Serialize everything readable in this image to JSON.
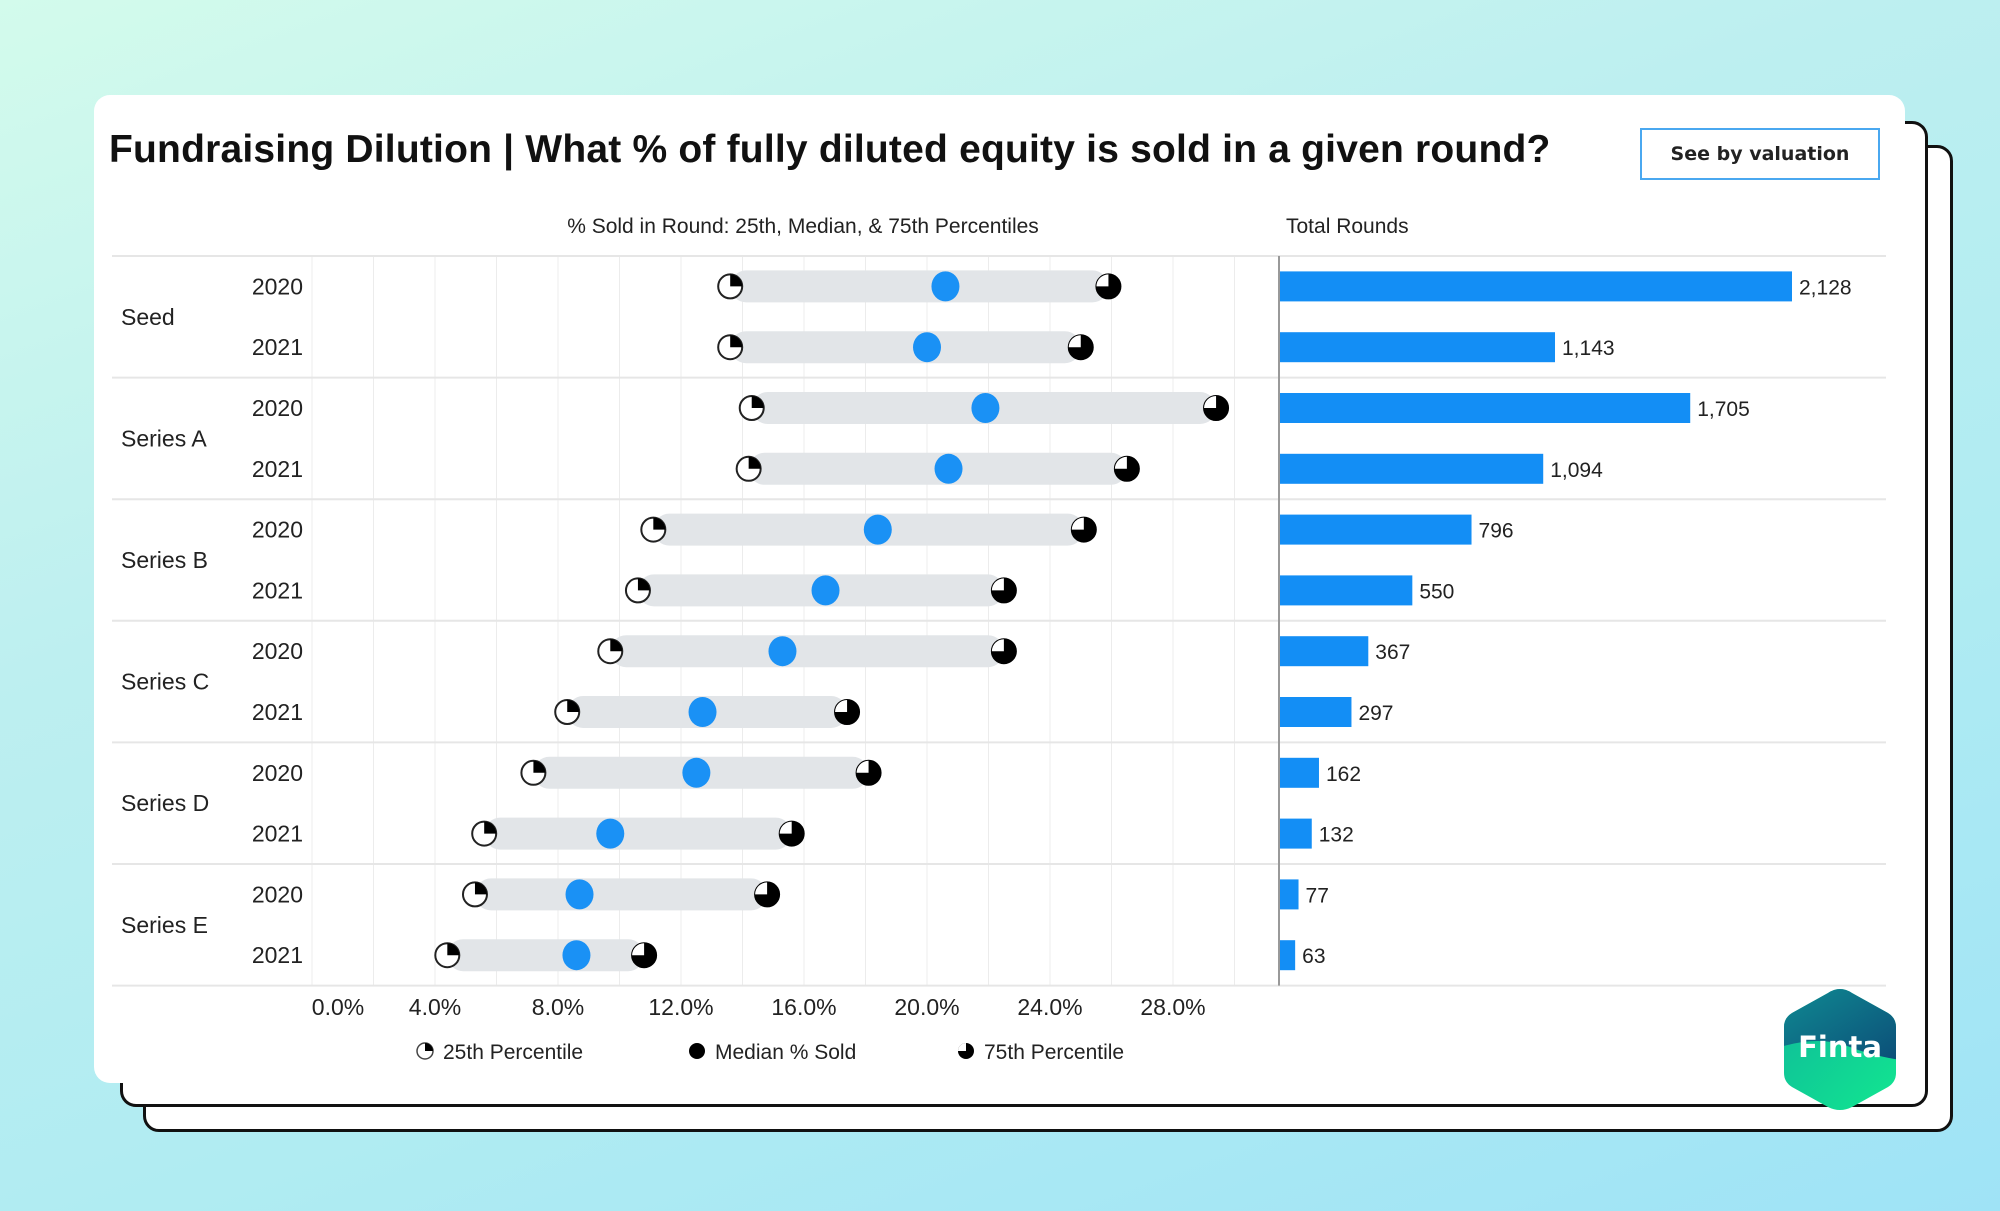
{
  "header": {
    "title": "Fundraising Dilution | What % of fully diluted equity is sold in a given round?",
    "button_label": "See by valuation"
  },
  "brand": {
    "logo_text": "Finta",
    "logo_colors": [
      "#0c4e78",
      "#0f8c93",
      "#12e08f"
    ]
  },
  "colors": {
    "median": "#1a91f5",
    "bar": "#138ef5",
    "range_band": "#e2e5e8",
    "marker_dark": "#000000",
    "gridline": "#ececec"
  },
  "chart_data": [
    {
      "type": "dot-range",
      "title": "% Sold in Round: 25th, Median, & 75th Percentiles",
      "xlabel": "",
      "ylabel": "",
      "xlim": [
        0,
        31
      ],
      "x_ticks": [
        "0.0%",
        "4.0%",
        "8.0%",
        "12.0%",
        "16.0%",
        "20.0%",
        "24.0%",
        "28.0%"
      ],
      "x_tick_values": [
        0,
        4,
        8,
        12,
        16,
        20,
        24,
        28
      ],
      "grid": true,
      "legend": {
        "placement": "bottom",
        "entries": [
          "25th Percentile",
          "Median % Sold",
          "75th Percentile"
        ]
      },
      "groups": [
        {
          "round": "Seed",
          "rows": [
            {
              "year": "2020",
              "p25": 13.6,
              "median": 20.6,
              "p75": 25.9
            },
            {
              "year": "2021",
              "p25": 13.6,
              "median": 20.0,
              "p75": 25.0
            }
          ]
        },
        {
          "round": "Series A",
          "rows": [
            {
              "year": "2020",
              "p25": 14.3,
              "median": 21.9,
              "p75": 29.4
            },
            {
              "year": "2021",
              "p25": 14.2,
              "median": 20.7,
              "p75": 26.5
            }
          ]
        },
        {
          "round": "Series B",
          "rows": [
            {
              "year": "2020",
              "p25": 11.1,
              "median": 18.4,
              "p75": 25.1
            },
            {
              "year": "2021",
              "p25": 10.6,
              "median": 16.7,
              "p75": 22.5
            }
          ]
        },
        {
          "round": "Series C",
          "rows": [
            {
              "year": "2020",
              "p25": 9.7,
              "median": 15.3,
              "p75": 22.5
            },
            {
              "year": "2021",
              "p25": 8.3,
              "median": 12.7,
              "p75": 17.4
            }
          ]
        },
        {
          "round": "Series D",
          "rows": [
            {
              "year": "2020",
              "p25": 7.2,
              "median": 12.5,
              "p75": 18.1
            },
            {
              "year": "2021",
              "p25": 5.6,
              "median": 9.7,
              "p75": 15.6
            }
          ]
        },
        {
          "round": "Series E",
          "rows": [
            {
              "year": "2020",
              "p25": 5.3,
              "median": 8.7,
              "p75": 14.8
            },
            {
              "year": "2021",
              "p25": 4.4,
              "median": 8.6,
              "p75": 10.8
            }
          ]
        }
      ]
    },
    {
      "type": "bar",
      "title": "Total Rounds",
      "orientation": "horizontal",
      "categories": [
        "Seed 2020",
        "Seed 2021",
        "Series A 2020",
        "Series A 2021",
        "Series B 2020",
        "Series B 2021",
        "Series C 2020",
        "Series C 2021",
        "Series D 2020",
        "Series D 2021",
        "Series E 2020",
        "Series E 2021"
      ],
      "values": [
        2128,
        1143,
        1705,
        1094,
        796,
        550,
        367,
        297,
        162,
        132,
        77,
        63
      ],
      "value_labels": [
        "2,128",
        "1,143",
        "1,705",
        "1,094",
        "796",
        "550",
        "367",
        "297",
        "162",
        "132",
        "77",
        "63"
      ],
      "xlim": [
        0,
        2400
      ],
      "grid": false
    }
  ]
}
